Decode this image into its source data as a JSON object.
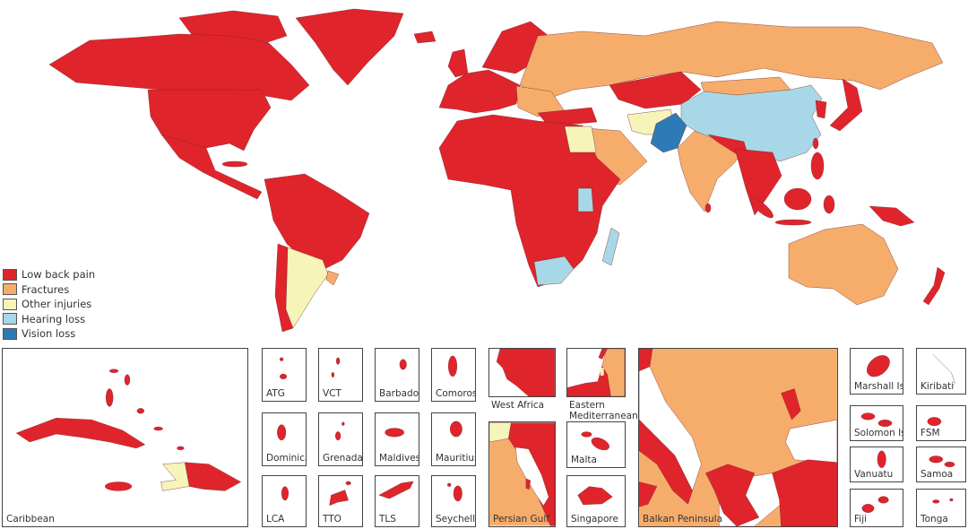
{
  "legend": [
    {
      "key": "lbp",
      "label": "Low back pain",
      "color": "#e0242c"
    },
    {
      "key": "frac",
      "label": "Fractures",
      "color": "#f6ad6c"
    },
    {
      "key": "other",
      "label": "Other injuries",
      "color": "#f6f4b9"
    },
    {
      "key": "hear",
      "label": "Hearing loss",
      "color": "#a8d8e8"
    },
    {
      "key": "vis",
      "label": "Vision loss",
      "color": "#2c7bb6"
    }
  ],
  "insets": {
    "caribbean": "Caribbean",
    "atg": "ATG",
    "vct": "VCT",
    "barbados": "Barbados",
    "comoros": "Comoros",
    "dominica": "Dominica",
    "grenada": "Grenada",
    "maldives": "Maldives",
    "mauritius": "Mauritius",
    "lca": "LCA",
    "tto": "TTO",
    "tls": "TLS",
    "seychelles": "Seychelles",
    "west_africa": "West Africa",
    "eastern_med_1": "Eastern",
    "eastern_med_2": "Mediterranean",
    "persian_gulf": "Persian Gulf",
    "malta": "Malta",
    "singapore": "Singapore",
    "balkan": "Balkan Peninsula",
    "marshall": "Marshall Isl",
    "kiribati": "Kiribati",
    "solomon": "Solomon Isl",
    "fsm": "FSM",
    "vanuatu": "Vanuatu",
    "samoa": "Samoa",
    "fiji": "Fiji",
    "tonga": "Tonga"
  }
}
